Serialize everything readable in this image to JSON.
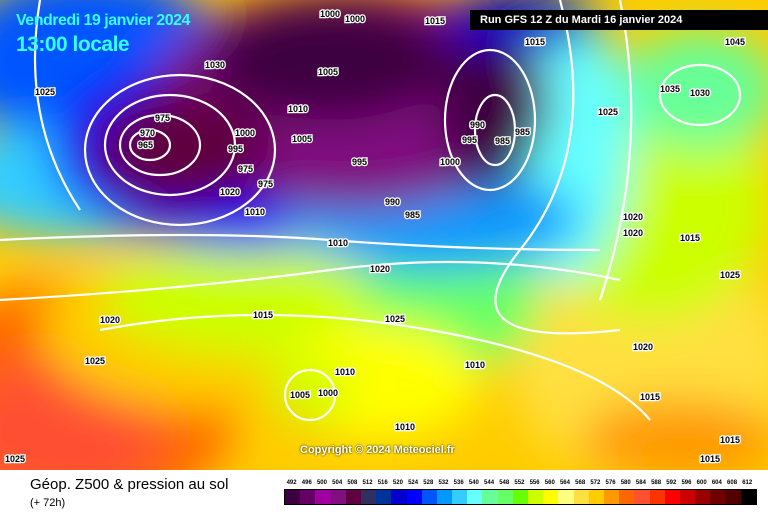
{
  "header": {
    "date": "Vendredi 19 janvier 2024",
    "time": "13:00 locale",
    "run": "Run GFS 12 Z du Mardi 16 janvier 2024"
  },
  "map": {
    "copyright": "Copyright © 2024 Meteociel.fr",
    "isobar_labels": [
      "1030",
      "1025",
      "1000",
      "1000",
      "1015",
      "1015",
      "1045",
      "1035",
      "1030",
      "975",
      "970",
      "965",
      "985",
      "1000",
      "995",
      "975",
      "975",
      "1010",
      "1005",
      "1005",
      "995",
      "995",
      "990",
      "985",
      "990",
      "985",
      "1025",
      "1010",
      "1020",
      "1015",
      "1020",
      "1020",
      "1025",
      "1015",
      "1020",
      "1025",
      "1020",
      "1015",
      "1010",
      "1005",
      "1000",
      "1010",
      "1010",
      "1025",
      "1020",
      "1015",
      "1015",
      "1025",
      "1010",
      "1000"
    ]
  },
  "footer": {
    "title": "Géop. Z500 & pression au sol",
    "subtitle": "(+ 72h)"
  },
  "legend": {
    "values": [
      492,
      496,
      500,
      504,
      508,
      512,
      516,
      520,
      524,
      528,
      532,
      536,
      540,
      544,
      548,
      552,
      556,
      560,
      564,
      568,
      572,
      576,
      580,
      584,
      588,
      592,
      596,
      600,
      604,
      608,
      612
    ],
    "colors": [
      "#3c0040",
      "#660066",
      "#a000a0",
      "#801080",
      "#600040",
      "#303060",
      "#003399",
      "#0000cc",
      "#0000ff",
      "#0055ff",
      "#0099ff",
      "#33ccff",
      "#66ffff",
      "#66ff99",
      "#66ff66",
      "#66ff00",
      "#ccff00",
      "#ffff00",
      "#ffff80",
      "#ffe040",
      "#ffcc00",
      "#ff9900",
      "#ff6600",
      "#ff5030",
      "#ff3300",
      "#ff0000",
      "#cc0000",
      "#990000",
      "#700000",
      "#500000",
      "#000000"
    ]
  }
}
